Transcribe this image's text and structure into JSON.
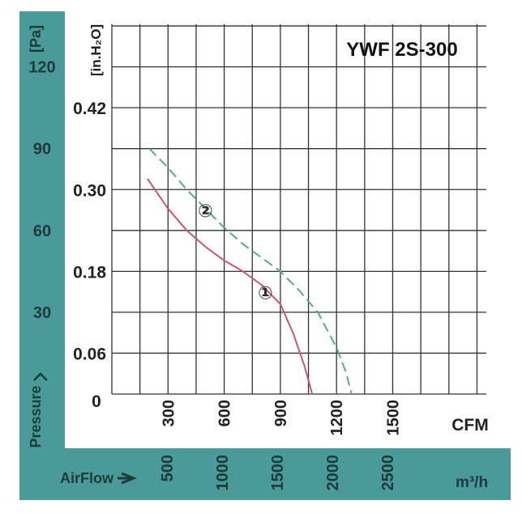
{
  "colors": {
    "frame": "#4a9a9a",
    "background": "#ffffff",
    "grid": "#333333",
    "curve_1": "#cc5577",
    "curve_2": "#55aa99",
    "label": "#2b2b2b",
    "axis_text_on_teal": "#1e3b3b"
  },
  "chart_data": {
    "type": "line",
    "title": "YWF 2S-300",
    "xlabel": "CFM",
    "x2label": "m³/h",
    "x2axis_name": "AirFlow",
    "ylabel_pa": "[Pa]",
    "ylabel_inh2o": "[in.H₂O]",
    "yaxis_name": "Pressure",
    "xlim": [
      0,
      1850
    ],
    "ylim_pa": [
      0,
      120
    ],
    "grid": true,
    "x_ticks_cfm": [
      {
        "value": 300,
        "label": "300"
      },
      {
        "value": 600,
        "label": "600"
      },
      {
        "value": 900,
        "label": "900"
      },
      {
        "value": 1200,
        "label": "1200"
      },
      {
        "value": 1500,
        "label": "1500"
      }
    ],
    "x_ticks_m3h": [
      {
        "value": 500,
        "label": "500"
      },
      {
        "value": 1000,
        "label": "1000"
      },
      {
        "value": 1500,
        "label": "1500"
      },
      {
        "value": 2000,
        "label": "2000"
      },
      {
        "value": 2500,
        "label": "2500"
      }
    ],
    "y_ticks_pa": [
      {
        "value": 0,
        "label": "0"
      },
      {
        "value": 30,
        "label": "30"
      },
      {
        "value": 60,
        "label": "60"
      },
      {
        "value": 90,
        "label": "90"
      },
      {
        "value": 120,
        "label": "120"
      }
    ],
    "y_ticks_inh2o": [
      {
        "value": 15,
        "label": "0.06"
      },
      {
        "value": 45,
        "label": "0.18"
      },
      {
        "value": 75,
        "label": "0.30"
      },
      {
        "value": 105,
        "label": "0.42"
      }
    ],
    "series": [
      {
        "name": "①",
        "style": "solid",
        "x": [
          190,
          300,
          400,
          500,
          600,
          700,
          800,
          900,
          970,
          1030,
          1070
        ],
        "y_pa": [
          79,
          68,
          60,
          54,
          49,
          45,
          40,
          33,
          22,
          10,
          0
        ],
        "label_at": [
          820,
          37
        ]
      },
      {
        "name": "②",
        "style": "dashed",
        "x": [
          200,
          300,
          400,
          500,
          600,
          700,
          800,
          900,
          1000,
          1100,
          1200,
          1250,
          1280
        ],
        "y_pa": [
          90,
          83,
          75,
          68,
          61,
          55,
          50,
          45,
          38,
          30,
          17,
          8,
          0
        ],
        "label_at": [
          500,
          67
        ]
      }
    ]
  }
}
